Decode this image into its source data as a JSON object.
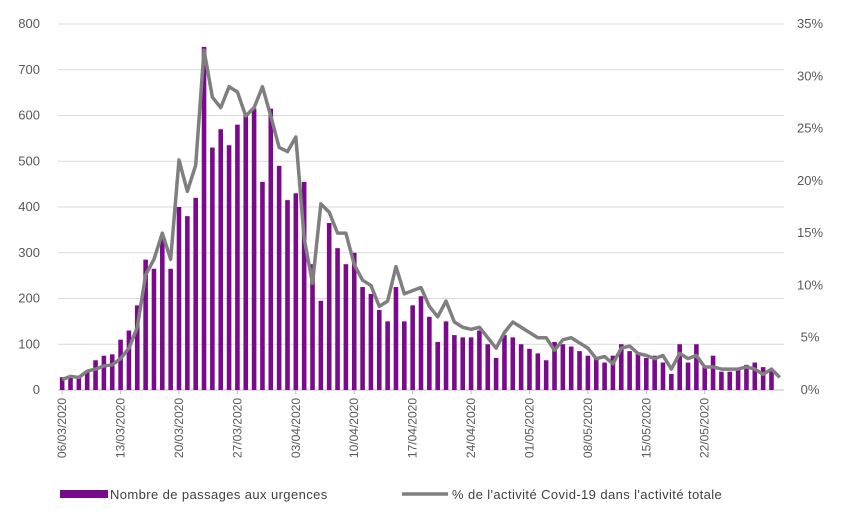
{
  "chart_data": {
    "type": "bar+line",
    "title": "",
    "xlabel": "",
    "ylabel": "",
    "y_left": {
      "ylim": [
        0,
        800
      ],
      "ticks": [
        "0",
        "100",
        "200",
        "300",
        "400",
        "500",
        "600",
        "700",
        "800"
      ]
    },
    "y_right": {
      "ylim": [
        0,
        0.35
      ],
      "ticks": [
        "0%",
        "5%",
        "10%",
        "15%",
        "20%",
        "25%",
        "30%",
        "35%"
      ]
    },
    "grid": "horizontal",
    "legend_position": "bottom",
    "x_tick_labels": [
      "06/03/2020",
      "13/03/2020",
      "20/03/2020",
      "27/03/2020",
      "03/04/2020",
      "10/04/2020",
      "17/04/2020",
      "24/04/2020",
      "01/05/2020",
      "08/05/2020",
      "15/05/2020",
      "22/05/2020"
    ],
    "x_tick_every": 7,
    "dates": [
      "06/03/2020",
      "07/03/2020",
      "08/03/2020",
      "09/03/2020",
      "10/03/2020",
      "11/03/2020",
      "12/03/2020",
      "13/03/2020",
      "14/03/2020",
      "15/03/2020",
      "16/03/2020",
      "17/03/2020",
      "18/03/2020",
      "19/03/2020",
      "20/03/2020",
      "21/03/2020",
      "22/03/2020",
      "23/03/2020",
      "24/03/2020",
      "25/03/2020",
      "26/03/2020",
      "27/03/2020",
      "28/03/2020",
      "29/03/2020",
      "30/03/2020",
      "31/03/2020",
      "01/04/2020",
      "02/04/2020",
      "03/04/2020",
      "04/04/2020",
      "05/04/2020",
      "06/04/2020",
      "07/04/2020",
      "08/04/2020",
      "09/04/2020",
      "10/04/2020",
      "11/04/2020",
      "12/04/2020",
      "13/04/2020",
      "14/04/2020",
      "15/04/2020",
      "16/04/2020",
      "17/04/2020",
      "18/04/2020",
      "19/04/2020",
      "20/04/2020",
      "21/04/2020",
      "22/04/2020",
      "23/04/2020",
      "24/04/2020",
      "25/04/2020",
      "26/04/2020",
      "27/04/2020",
      "28/04/2020",
      "29/04/2020",
      "30/04/2020",
      "01/05/2020",
      "02/05/2020",
      "03/05/2020",
      "04/05/2020",
      "05/05/2020",
      "06/05/2020",
      "07/05/2020",
      "08/05/2020",
      "09/05/2020",
      "10/05/2020",
      "11/05/2020",
      "12/05/2020",
      "13/05/2020",
      "14/05/2020",
      "15/05/2020",
      "16/05/2020",
      "17/05/2020",
      "18/05/2020",
      "19/05/2020",
      "20/05/2020",
      "21/05/2020",
      "22/05/2020",
      "23/05/2020",
      "24/05/2020",
      "25/05/2020",
      "26/05/2020",
      "27/05/2020",
      "28/05/2020",
      "29/05/2020",
      "30/05/2020",
      "31/05/2020"
    ],
    "series": [
      {
        "name": "Nombre de passages aux urgences",
        "type": "bar",
        "axis": "left",
        "color": "#7a0a8c",
        "values": [
          28,
          30,
          28,
          40,
          65,
          75,
          78,
          110,
          130,
          185,
          285,
          265,
          330,
          265,
          400,
          380,
          420,
          750,
          530,
          570,
          535,
          580,
          605,
          615,
          455,
          615,
          490,
          415,
          430,
          455,
          275,
          195,
          365,
          310,
          275,
          300,
          225,
          210,
          175,
          150,
          225,
          150,
          185,
          205,
          160,
          105,
          150,
          120,
          115,
          115,
          130,
          100,
          70,
          120,
          115,
          100,
          90,
          80,
          65,
          105,
          100,
          95,
          85,
          75,
          70,
          60,
          75,
          100,
          85,
          80,
          70,
          75,
          60,
          35,
          100,
          60,
          100,
          50,
          75,
          40,
          40,
          45,
          55,
          60,
          50,
          45,
          0
        ],
        "values_note_unused": ""
      },
      {
        "name": "% de l'activité Covid-19 dans l'activité totale",
        "type": "line",
        "axis": "right",
        "color": "#7f7f7f",
        "values": [
          0.01,
          0.013,
          0.012,
          0.018,
          0.02,
          0.023,
          0.024,
          0.03,
          0.04,
          0.06,
          0.11,
          0.125,
          0.15,
          0.125,
          0.22,
          0.19,
          0.215,
          0.325,
          0.28,
          0.27,
          0.29,
          0.285,
          0.262,
          0.27,
          0.29,
          0.262,
          0.232,
          0.228,
          0.242,
          0.145,
          0.102,
          0.178,
          0.17,
          0.15,
          0.15,
          0.12,
          0.105,
          0.1,
          0.08,
          0.085,
          0.118,
          0.092,
          0.095,
          0.098,
          0.08,
          0.07,
          0.085,
          0.065,
          0.06,
          0.058,
          0.06,
          0.05,
          0.04,
          0.055,
          0.065,
          0.06,
          0.055,
          0.05,
          0.05,
          0.038,
          0.048,
          0.05,
          0.045,
          0.04,
          0.03,
          0.032,
          0.025,
          0.04,
          0.042,
          0.035,
          0.033,
          0.03,
          0.033,
          0.02,
          0.035,
          0.03,
          0.033,
          0.022,
          0.022,
          0.02,
          0.02,
          0.02,
          0.022,
          0.02,
          0.015,
          0.02,
          0.012
        ]
      }
    ]
  },
  "legend": {
    "bar_label": "Nombre de passages aux urgences",
    "line_label": "% de l'activité Covid-19 dans l'activité totale"
  }
}
